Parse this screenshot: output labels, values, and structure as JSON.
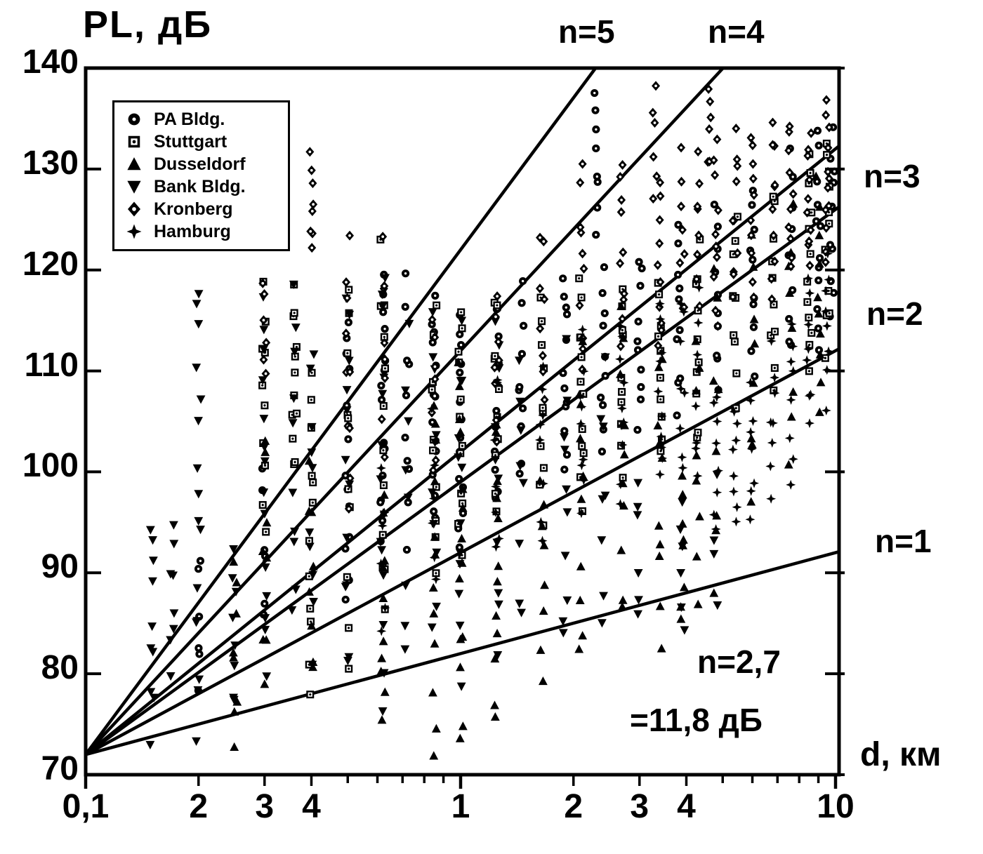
{
  "title": {
    "text": "PL,  дБ"
  },
  "colors": {
    "ink": "#000000",
    "paper": "#ffffff"
  },
  "axes": {
    "x_label": "d,  км",
    "x_scale": "log",
    "x_range": [
      0.1,
      10.2
    ],
    "y_range": [
      70,
      140
    ],
    "x_ticks": [
      {
        "label": "0,1",
        "d": 0.1
      },
      {
        "label": "2",
        "d": 0.2
      },
      {
        "label": "3",
        "d": 0.3
      },
      {
        "label": "4",
        "d": 0.4
      },
      {
        "label": "1",
        "d": 1
      },
      {
        "label": "2",
        "d": 2
      },
      {
        "label": "3",
        "d": 3
      },
      {
        "label": "4",
        "d": 4
      },
      {
        "label": "10",
        "d": 10
      }
    ],
    "y_ticks": [
      140,
      130,
      120,
      110,
      100,
      90,
      80,
      70
    ]
  },
  "legend": {
    "items": [
      {
        "label": "PA Bldg.",
        "marker": "circle-dot"
      },
      {
        "label": "Stuttgart",
        "marker": "square-dot"
      },
      {
        "label": "Dusseldorf",
        "marker": "triangle-up"
      },
      {
        "label": "Bank Bldg.",
        "marker": "triangle-down"
      },
      {
        "label": "Kronberg",
        "marker": "diamond-dot"
      },
      {
        "label": "Hamburg",
        "marker": "star4"
      }
    ]
  },
  "chart_data": {
    "type": "scatter",
    "title": "PL, дБ",
    "xlabel": "d, км",
    "ylabel": "PL, дБ",
    "x_scale": "log",
    "xlim": [
      0.1,
      10.2
    ],
    "ylim": [
      70,
      140
    ],
    "intercept": {
      "d0": 0.1,
      "pl0": 72
    },
    "model_lines": [
      {
        "label": "n=5",
        "n": 5
      },
      {
        "label": "n=4",
        "n": 4
      },
      {
        "label": "n=3",
        "n": 3
      },
      {
        "label": "n=2",
        "n": 2
      },
      {
        "label": "n=1",
        "n": 1
      },
      {
        "label": "n=2,7",
        "n": 2.7,
        "role": "fit"
      }
    ],
    "annotation": {
      "line1": "n=2,7",
      "line2": "=11,8  дБ"
    },
    "seed": 42,
    "series": [
      {
        "name": "PA Bldg.",
        "marker": "circle-dot",
        "clusters": [
          [
            0.2,
            78,
            92,
            6
          ],
          [
            0.3,
            85,
            100,
            6
          ],
          [
            0.5,
            88,
            116,
            14
          ],
          [
            0.62,
            90,
            120,
            16
          ],
          [
            0.72,
            93,
            118,
            10
          ],
          [
            0.85,
            95,
            117,
            14
          ],
          [
            1.0,
            93,
            116,
            14
          ],
          [
            1.25,
            97,
            117,
            12
          ],
          [
            1.45,
            99,
            118,
            10
          ],
          [
            1.9,
            100,
            120,
            12
          ],
          [
            2.3,
            124,
            138,
            8
          ],
          [
            2.4,
            102,
            121,
            10
          ],
          [
            3.0,
            104,
            122,
            10
          ],
          [
            3.8,
            106,
            124,
            10
          ],
          [
            4.8,
            108,
            126,
            10
          ],
          [
            6.0,
            110,
            128,
            10
          ],
          [
            7.6,
            112,
            131,
            10
          ],
          [
            9.0,
            113,
            133,
            12
          ],
          [
            9.8,
            115,
            134,
            10
          ]
        ]
      },
      {
        "name": "Stuttgart",
        "marker": "square-dot",
        "clusters": [
          [
            0.3,
            95,
            118,
            10
          ],
          [
            0.36,
            100,
            118,
            12
          ],
          [
            0.4,
            78,
            110,
            12
          ],
          [
            0.5,
            83,
            120,
            10
          ],
          [
            0.62,
            86,
            121,
            12
          ],
          [
            0.85,
            90,
            116,
            10
          ],
          [
            1.0,
            92,
            116,
            12
          ],
          [
            1.25,
            95,
            118,
            10
          ],
          [
            1.65,
            96,
            117,
            10
          ],
          [
            2.1,
            97,
            118,
            12
          ],
          [
            2.7,
            99,
            119,
            10
          ],
          [
            3.4,
            101,
            120,
            10
          ],
          [
            4.3,
            103,
            122,
            10
          ],
          [
            5.4,
            105,
            125,
            10
          ],
          [
            6.8,
            108,
            128,
            10
          ],
          [
            8.5,
            110,
            132,
            12
          ],
          [
            9.5,
            112,
            134,
            10
          ]
        ]
      },
      {
        "name": "Dusseldorf",
        "marker": "triangle-up",
        "clusters": [
          [
            0.25,
            74,
            90,
            8
          ],
          [
            0.3,
            78,
            105,
            8
          ],
          [
            0.4,
            80,
            100,
            8
          ],
          [
            0.62,
            74,
            98,
            10
          ],
          [
            0.85,
            73,
            108,
            12
          ],
          [
            1.0,
            73,
            112,
            14
          ],
          [
            1.25,
            75,
            105,
            12
          ],
          [
            1.65,
            80,
            100,
            8
          ],
          [
            2.1,
            82,
            112,
            10
          ],
          [
            2.7,
            85,
            115,
            10
          ],
          [
            3.4,
            84,
            112,
            10
          ],
          [
            3.9,
            85,
            100,
            8
          ],
          [
            4.3,
            87,
            114,
            8
          ],
          [
            4.8,
            88,
            120,
            8
          ],
          [
            6.0,
            98,
            122,
            8
          ],
          [
            7.6,
            102,
            126,
            8
          ],
          [
            9.0,
            105,
            130,
            10
          ]
        ]
      },
      {
        "name": "Bank Bldg.",
        "marker": "triangle-down",
        "clusters": [
          [
            0.15,
            74,
            95,
            10
          ],
          [
            0.17,
            80,
            95,
            8
          ],
          [
            0.2,
            75,
            119,
            16
          ],
          [
            0.25,
            76,
            93,
            8
          ],
          [
            0.3,
            80,
            118,
            14
          ],
          [
            0.36,
            85,
            118,
            10
          ],
          [
            0.4,
            82,
            112,
            10
          ],
          [
            0.5,
            80,
            118,
            12
          ],
          [
            0.62,
            78,
            121,
            14
          ],
          [
            0.72,
            82,
            115,
            8
          ],
          [
            0.85,
            85,
            115,
            10
          ],
          [
            1.0,
            80,
            114,
            12
          ],
          [
            1.25,
            82,
            116,
            10
          ],
          [
            1.45,
            85,
            112,
            8
          ],
          [
            1.9,
            82,
            112,
            10
          ],
          [
            2.4,
            85,
            110,
            8
          ],
          [
            3.0,
            85,
            100,
            6
          ],
          [
            3.9,
            85,
            96,
            6
          ],
          [
            4.8,
            88,
            98,
            4
          ]
        ]
      },
      {
        "name": "Kronberg",
        "marker": "diamond-dot",
        "clusters": [
          [
            0.3,
            110,
            119,
            6
          ],
          [
            0.4,
            122,
            131,
            8
          ],
          [
            0.5,
            98,
            122,
            10
          ],
          [
            0.62,
            103,
            122,
            8
          ],
          [
            0.85,
            100,
            116,
            8
          ],
          [
            1.25,
            104,
            118,
            8
          ],
          [
            1.65,
            107,
            124,
            8
          ],
          [
            2.1,
            110,
            130,
            10
          ],
          [
            2.7,
            112,
            131,
            10
          ],
          [
            3.3,
            128,
            138,
            6
          ],
          [
            3.4,
            112,
            128,
            10
          ],
          [
            3.9,
            115,
            131,
            8
          ],
          [
            4.3,
            117,
            131,
            8
          ],
          [
            4.6,
            130,
            138,
            6
          ],
          [
            4.8,
            115,
            132,
            10
          ],
          [
            5.4,
            117,
            133,
            10
          ],
          [
            6.0,
            118,
            134,
            10
          ],
          [
            6.8,
            118,
            135,
            10
          ],
          [
            7.6,
            120,
            135,
            10
          ],
          [
            8.5,
            120,
            134,
            10
          ],
          [
            9.5,
            121,
            136,
            12
          ]
        ]
      },
      {
        "name": "Hamburg",
        "marker": "star4",
        "clusters": [
          [
            0.62,
            85,
            100,
            6
          ],
          [
            0.85,
            88,
            106,
            6
          ],
          [
            1.25,
            92,
            110,
            8
          ],
          [
            1.65,
            94,
            112,
            8
          ],
          [
            2.1,
            96,
            114,
            10
          ],
          [
            2.7,
            98,
            115,
            10
          ],
          [
            3.4,
            99,
            116,
            10
          ],
          [
            3.9,
            100,
            117,
            8
          ],
          [
            4.3,
            98,
            117,
            8
          ],
          [
            4.8,
            94,
            108,
            8
          ],
          [
            5.4,
            95,
            106,
            8
          ],
          [
            6.0,
            96,
            110,
            8
          ],
          [
            6.8,
            98,
            112,
            8
          ],
          [
            7.6,
            100,
            116,
            8
          ],
          [
            8.5,
            104,
            120,
            8
          ],
          [
            9.5,
            107,
            122,
            8
          ]
        ]
      }
    ]
  }
}
